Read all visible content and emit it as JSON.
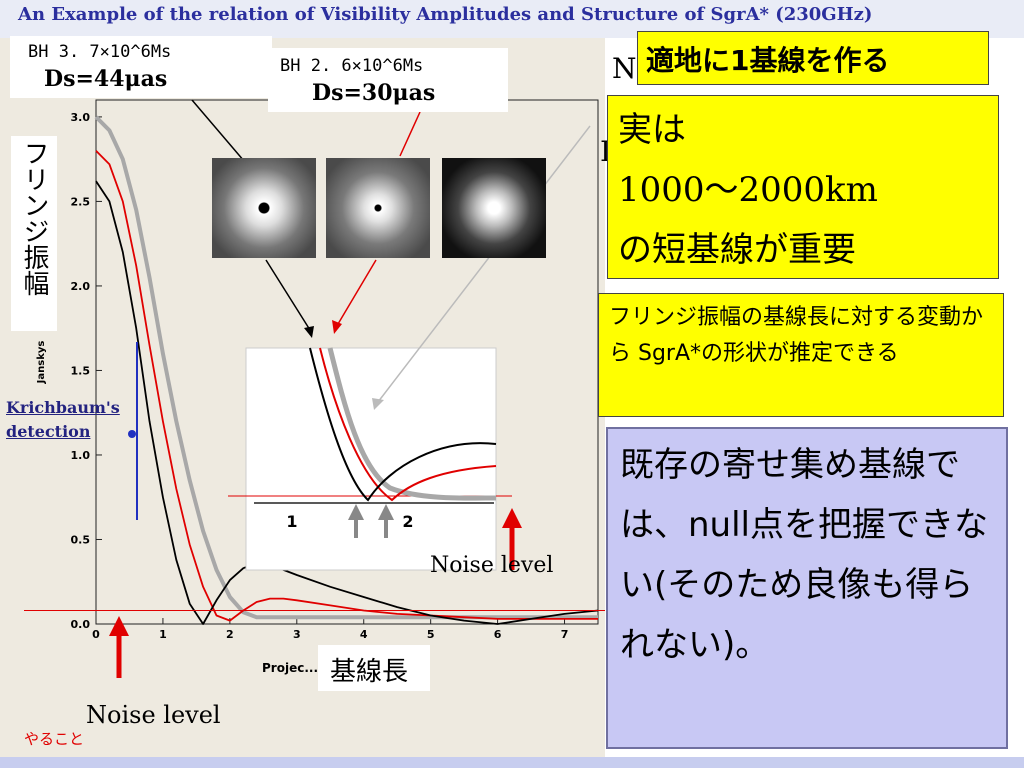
{
  "slide": {
    "title": "An Example of  the relation of Visibility Amplitudes and Structure of SgrA*  (230GHz)",
    "top_right_fragment_1": "N",
    "top_right_fragment_2": "I"
  },
  "labels": {
    "bh1_line1": "BH  3. 7×10^6Ms",
    "bh1_line2": "Ds=44μas",
    "bh2_line1": "BH  2. 6×10^6Ms",
    "bh2_line2": "Ds=30μas",
    "y_axis_jp": "フリンジ振幅",
    "krichbaum": "Krichbaum's detection",
    "x_axis_jp": "基線長",
    "noise_level_inset": "Noise level",
    "noise_level_bottom": "Noise level",
    "todo": "やること"
  },
  "callouts": {
    "make_baseline": "適地に1基線を作る",
    "actually_line1": "実は",
    "actually_line2": "1000〜2000km",
    "actually_line3": "の短基線が重要",
    "estimate": "フリンジ振幅の基線長に対する変動から SgrA*の形状が推定できる",
    "existing": "既存の寄せ集め基線では、null点を把握できない(そのため良像も得られない)。"
  },
  "colors": {
    "black_series": "#000000",
    "red_series": "#e00000",
    "gray_series": "#a8a8a8",
    "noise_line": "#e00000",
    "callout_yellow": "#ffff00",
    "callout_lavender": "#c8c8f4",
    "title_blue": "#2b2f9e",
    "arrow_red": "#e00000",
    "arrow_gray": "#888888"
  },
  "chart_data": {
    "type": "line",
    "ylabel": "Janskys",
    "xlabel": "Projec... Length",
    "xlim": [
      0,
      7.5
    ],
    "ylim": [
      0,
      3.1
    ],
    "x_ticks": [
      "0",
      "1",
      "2",
      "3",
      "4",
      "5",
      "6",
      "7"
    ],
    "y_ticks": [
      "0.0",
      "0.5",
      "1.0",
      "1.5",
      "2.0",
      "2.5",
      "3.0"
    ],
    "noise_level": 0.08,
    "krichbaum_detection": {
      "x": 0.55,
      "y": 1.15
    },
    "series": [
      {
        "color": "black",
        "x": [
          0,
          0.2,
          0.4,
          0.6,
          0.8,
          1.0,
          1.2,
          1.4,
          1.6,
          1.8,
          2.0,
          2.2,
          2.4,
          2.6,
          2.8,
          3.0,
          3.5,
          4.0,
          4.5,
          5.0,
          5.5,
          6.0,
          6.5,
          7.0,
          7.5
        ],
        "y": [
          2.62,
          2.5,
          2.2,
          1.75,
          1.2,
          0.75,
          0.38,
          0.12,
          0.0,
          0.14,
          0.26,
          0.33,
          0.36,
          0.35,
          0.32,
          0.29,
          0.22,
          0.16,
          0.1,
          0.05,
          0.02,
          0.0,
          0.03,
          0.06,
          0.08
        ]
      },
      {
        "color": "red",
        "x": [
          0,
          0.2,
          0.4,
          0.6,
          0.8,
          1.0,
          1.2,
          1.4,
          1.6,
          1.8,
          2.0,
          2.2,
          2.4,
          2.6,
          2.8,
          3.0,
          3.5,
          4.0,
          4.5,
          5.0,
          5.5,
          6.0,
          6.5,
          7.0,
          7.5
        ],
        "y": [
          2.8,
          2.72,
          2.5,
          2.12,
          1.65,
          1.2,
          0.8,
          0.47,
          0.22,
          0.05,
          0.02,
          0.08,
          0.13,
          0.15,
          0.15,
          0.14,
          0.11,
          0.08,
          0.06,
          0.05,
          0.04,
          0.03,
          0.03,
          0.03,
          0.03
        ]
      },
      {
        "color": "gray",
        "x": [
          0,
          0.2,
          0.4,
          0.6,
          0.8,
          1.0,
          1.2,
          1.4,
          1.6,
          1.8,
          2.0,
          2.2,
          2.4,
          2.6,
          2.8,
          3.0,
          3.5,
          4.0,
          4.5,
          5.0,
          5.5,
          6.0,
          6.5,
          7.0,
          7.5
        ],
        "y": [
          3.0,
          2.92,
          2.75,
          2.45,
          2.05,
          1.6,
          1.2,
          0.85,
          0.55,
          0.32,
          0.16,
          0.07,
          0.04,
          0.04,
          0.04,
          0.04,
          0.04,
          0.04,
          0.04,
          0.04,
          0.04,
          0.04,
          0.04,
          0.04,
          0.04
        ]
      }
    ],
    "inset": {
      "x_ticks": [
        "1",
        "2"
      ],
      "note": "magnified view around null points"
    }
  }
}
